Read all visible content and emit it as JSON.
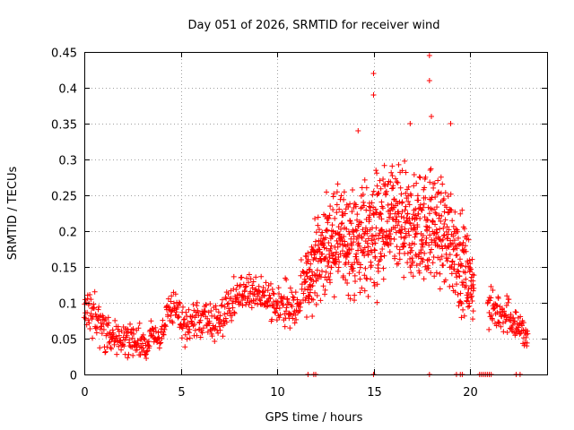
{
  "chart_data": {
    "type": "scatter",
    "title": "Day 051 of 2026, SRMTID for receiver wind",
    "xlabel": "GPS time / hours",
    "ylabel": "SRMTID / TECUs",
    "xlim": [
      0,
      24
    ],
    "ylim": [
      0,
      0.45
    ],
    "x_ticks": [
      0,
      5,
      10,
      15,
      20
    ],
    "x_tick_labels": [
      "0",
      "5",
      "10",
      "15",
      "20"
    ],
    "y_ticks": [
      0,
      0.05,
      0.1,
      0.15,
      0.2,
      0.25,
      0.3,
      0.35,
      0.4,
      0.45
    ],
    "y_tick_labels": [
      "0",
      "0.05",
      "0.1",
      "0.15",
      "0.2",
      "0.25",
      "0.3",
      "0.35",
      "0.4",
      "0.45"
    ],
    "grid": true,
    "marker": "plus",
    "series": [
      {
        "name": "SRMTID",
        "color": "#ff0000",
        "description": "dense cloud of points per epoch",
        "envelope": [
          {
            "t": 0.0,
            "center": 0.1,
            "spread": 0.025
          },
          {
            "t": 0.5,
            "center": 0.08,
            "spread": 0.03
          },
          {
            "t": 1.0,
            "center": 0.065,
            "spread": 0.025
          },
          {
            "t": 2.0,
            "center": 0.05,
            "spread": 0.02
          },
          {
            "t": 3.0,
            "center": 0.045,
            "spread": 0.02
          },
          {
            "t": 4.0,
            "center": 0.055,
            "spread": 0.02
          },
          {
            "t": 4.5,
            "center": 0.095,
            "spread": 0.025
          },
          {
            "t": 5.0,
            "center": 0.07,
            "spread": 0.025
          },
          {
            "t": 6.0,
            "center": 0.075,
            "spread": 0.025
          },
          {
            "t": 7.0,
            "center": 0.075,
            "spread": 0.025
          },
          {
            "t": 8.0,
            "center": 0.11,
            "spread": 0.025
          },
          {
            "t": 9.0,
            "center": 0.115,
            "spread": 0.025
          },
          {
            "t": 10.0,
            "center": 0.1,
            "spread": 0.025
          },
          {
            "t": 11.0,
            "center": 0.09,
            "spread": 0.03
          },
          {
            "t": 12.0,
            "center": 0.16,
            "spread": 0.05
          },
          {
            "t": 13.0,
            "center": 0.19,
            "spread": 0.06
          },
          {
            "t": 14.0,
            "center": 0.18,
            "spread": 0.07
          },
          {
            "t": 15.0,
            "center": 0.2,
            "spread": 0.08
          },
          {
            "t": 16.0,
            "center": 0.21,
            "spread": 0.07
          },
          {
            "t": 17.0,
            "center": 0.2,
            "spread": 0.07
          },
          {
            "t": 18.0,
            "center": 0.21,
            "spread": 0.07
          },
          {
            "t": 19.0,
            "center": 0.19,
            "spread": 0.07
          },
          {
            "t": 20.0,
            "center": 0.13,
            "spread": 0.05
          },
          {
            "t": 21.0,
            "center": 0.09,
            "spread": 0.025
          },
          {
            "t": 22.0,
            "center": 0.085,
            "spread": 0.025
          },
          {
            "t": 23.0,
            "center": 0.05,
            "spread": 0.02
          }
        ],
        "data_gaps_hours": [
          [
            20.2,
            20.9
          ]
        ],
        "notable_points": [
          {
            "x": 15.0,
            "y": 0.42
          },
          {
            "x": 15.0,
            "y": 0.39
          },
          {
            "x": 17.9,
            "y": 0.445
          },
          {
            "x": 17.9,
            "y": 0.41
          },
          {
            "x": 18.0,
            "y": 0.36
          },
          {
            "x": 19.0,
            "y": 0.35
          },
          {
            "x": 14.2,
            "y": 0.34
          },
          {
            "x": 16.9,
            "y": 0.35
          }
        ],
        "zero_points_x": [
          11.6,
          11.9,
          12.0,
          15.0,
          17.9,
          19.3,
          19.5,
          19.6,
          20.5,
          20.6,
          20.7,
          20.8,
          20.9,
          21.0,
          21.1,
          22.4,
          22.6
        ]
      }
    ]
  }
}
